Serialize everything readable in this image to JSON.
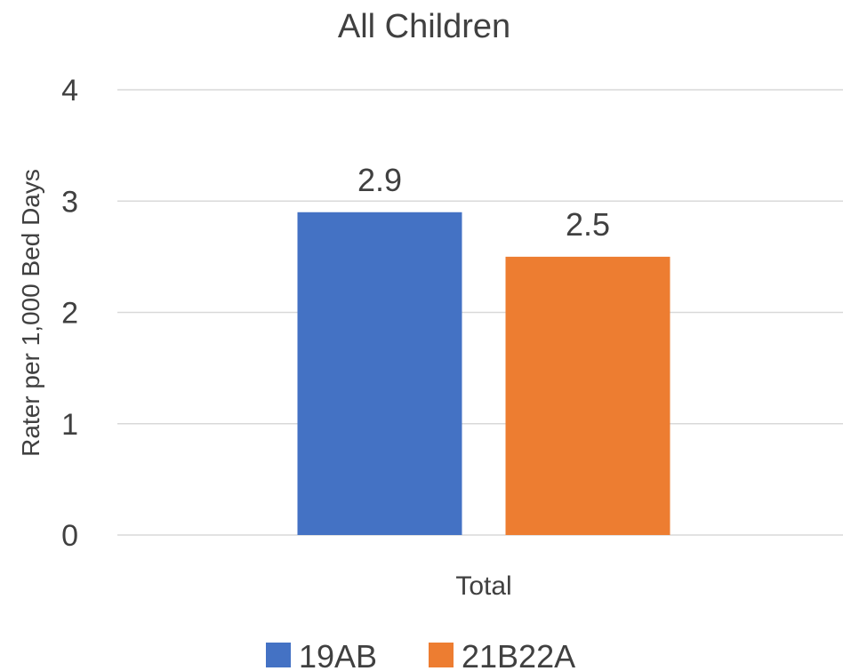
{
  "chart_data": {
    "type": "bar",
    "title": "All Children",
    "ylabel": "Rater per 1,000 Bed Days",
    "xlabel": "",
    "categories": [
      "Total"
    ],
    "series": [
      {
        "name": "19AB",
        "values": [
          2.9
        ],
        "color": "#4472c4"
      },
      {
        "name": "21B22A",
        "values": [
          2.5
        ],
        "color": "#ed7d31"
      }
    ],
    "ylim": [
      0,
      4
    ],
    "yticks": [
      0,
      1,
      2,
      3,
      4
    ],
    "grid": true,
    "legend": "bottom-center"
  }
}
